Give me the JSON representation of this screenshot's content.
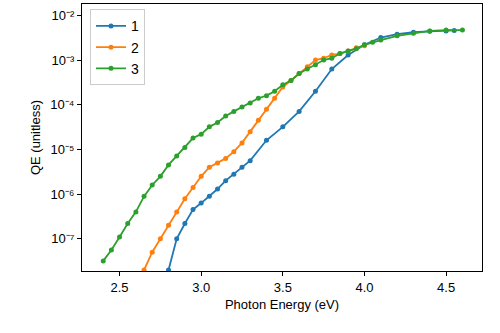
{
  "chart_data": {
    "type": "line",
    "x_label": "Photon Energy (eV)",
    "y_label": "QE (unitless)",
    "log": "y",
    "grid": false,
    "legend": "upper left",
    "marker": "circle",
    "xlim": [
      2.27,
      4.72
    ],
    "xticks": [
      2.5,
      {
        "value": 3,
        "label": "3.0"
      },
      3.5,
      {
        "value": 4,
        "label": "4.0"
      },
      4.5
    ],
    "ylim": [
      1.9e-08,
      0.018
    ],
    "yticks": [
      {
        "value": 1e-07,
        "label": "10⁻⁷"
      },
      {
        "value": 1e-06,
        "label": "10⁻⁶"
      },
      {
        "value": 1e-05,
        "label": "10⁻⁵"
      },
      {
        "value": 0.0001,
        "label": "10⁻⁴"
      },
      {
        "value": 0.001,
        "label": "10⁻³"
      },
      {
        "value": 0.01,
        "label": "10⁻²"
      }
    ],
    "series": [
      {
        "name": "1",
        "color": "#1f77b4",
        "x": [
          2.8,
          2.85,
          2.9,
          2.95,
          3.0,
          3.05,
          3.1,
          3.15,
          3.2,
          3.25,
          3.3,
          3.4,
          3.5,
          3.6,
          3.7,
          3.8,
          3.9,
          4.0,
          4.1,
          4.2,
          4.3,
          4.4,
          4.5,
          4.55
        ],
        "values": [
          2e-08,
          1e-07,
          2.2e-07,
          4.5e-07,
          6.3e-07,
          8.9e-07,
          1.3e-06,
          2e-06,
          2.8e-06,
          4e-06,
          5.6e-06,
          1.6e-05,
          3.2e-05,
          7.1e-05,
          0.0002,
          0.00063,
          0.0013,
          0.0022,
          0.0032,
          0.0038,
          0.0042,
          0.0044,
          0.0045,
          0.0046
        ]
      },
      {
        "name": "2",
        "color": "#ff7f0e",
        "x": [
          2.65,
          2.7,
          2.75,
          2.8,
          2.85,
          2.9,
          2.95,
          3.0,
          3.05,
          3.1,
          3.15,
          3.2,
          3.25,
          3.3,
          3.35,
          3.4,
          3.45,
          3.5,
          3.55,
          3.6,
          3.65,
          3.7,
          3.75,
          3.8,
          3.85,
          3.9,
          3.95,
          4.0
        ],
        "values": [
          2e-08,
          5e-08,
          1e-07,
          2e-07,
          4e-07,
          7.9e-07,
          1.4e-06,
          2.5e-06,
          4e-06,
          5e-06,
          6.3e-06,
          8.9e-06,
          1.4e-05,
          2.5e-05,
          4.5e-05,
          7.9e-05,
          0.00014,
          0.00025,
          0.00035,
          0.0005,
          0.00071,
          0.001,
          0.0011,
          0.0013,
          0.0014,
          0.0016,
          0.0019,
          0.0021
        ]
      },
      {
        "name": "3",
        "color": "#2ca02c",
        "x": [
          2.4,
          2.45,
          2.5,
          2.55,
          2.6,
          2.65,
          2.7,
          2.75,
          2.8,
          2.85,
          2.9,
          2.95,
          3.0,
          3.05,
          3.1,
          3.15,
          3.2,
          3.25,
          3.3,
          3.35,
          3.4,
          3.45,
          3.5,
          3.55,
          3.6,
          3.65,
          3.7,
          3.75,
          3.8,
          3.85,
          3.9,
          3.95,
          4.0,
          4.05,
          4.1,
          4.2,
          4.3,
          4.4,
          4.5,
          4.6
        ],
        "values": [
          3.2e-08,
          5.6e-08,
          1.1e-07,
          2.2e-07,
          4e-07,
          8.9e-07,
          1.6e-06,
          2.5e-06,
          4.5e-06,
          7.1e-06,
          1.1e-05,
          1.8e-05,
          2.2e-05,
          3.2e-05,
          4e-05,
          5.6e-05,
          7.1e-05,
          8.9e-05,
          0.00011,
          0.00014,
          0.00016,
          0.0002,
          0.00028,
          0.00035,
          0.0005,
          0.00063,
          0.00079,
          0.001,
          0.0011,
          0.0014,
          0.0016,
          0.0018,
          0.0022,
          0.0025,
          0.0028,
          0.0035,
          0.004,
          0.0045,
          0.0047,
          0.0047
        ]
      }
    ]
  }
}
